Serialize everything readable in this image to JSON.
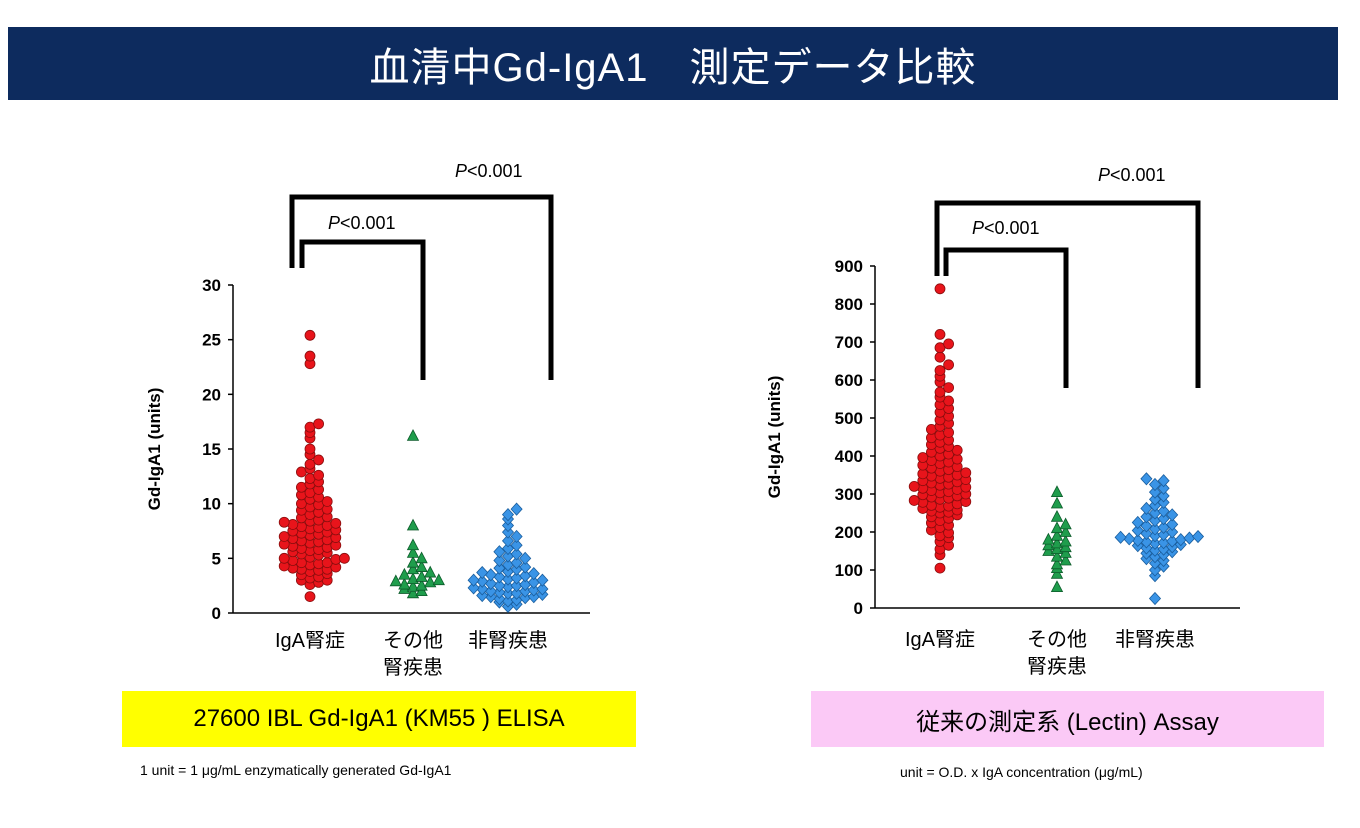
{
  "title": "血清中Gd-IgA1　測定データ比較",
  "colors": {
    "title_bg": "#0d2b5e",
    "title_text": "#ffffff",
    "elisa_box": "#ffff00",
    "lectin_box": "#fbc9f6",
    "iga_markers": "#e8141b",
    "other_markers": "#1f9d4c",
    "non_markers": "#3a94e6"
  },
  "chart_data": [
    {
      "type": "scatter",
      "style": "dot-plot (beeswarm)",
      "categories": [
        "IgA腎症",
        "その他\n腎疾患",
        "非腎疾患"
      ],
      "ylabel": "Gd-IgA1 (units)",
      "ylim": [
        0,
        30
      ],
      "yticks": [
        "0",
        "5",
        "10",
        "15",
        "20",
        "25",
        "30"
      ],
      "grid": false,
      "series": [
        {
          "category": "IgA腎症",
          "marker": "circle",
          "color": "#e8141b",
          "values": [
            1.5,
            2.6,
            2.8,
            3.0,
            3.0,
            3.2,
            3.3,
            3.5,
            3.6,
            3.8,
            3.9,
            4.0,
            4.0,
            4.1,
            4.2,
            4.3,
            4.4,
            4.5,
            4.6,
            4.6,
            4.8,
            4.9,
            5.0,
            5.0,
            5.1,
            5.3,
            5.4,
            5.5,
            5.6,
            5.7,
            5.8,
            5.9,
            6.0,
            6.1,
            6.2,
            6.3,
            6.4,
            6.5,
            6.6,
            6.7,
            6.8,
            6.9,
            7.0,
            7.1,
            7.2,
            7.3,
            7.4,
            7.5,
            7.6,
            7.7,
            7.8,
            7.9,
            8.0,
            8.1,
            8.2,
            8.3,
            8.4,
            8.5,
            8.7,
            8.8,
            9.0,
            9.2,
            9.4,
            9.5,
            9.7,
            9.9,
            10.0,
            10.2,
            10.4,
            10.6,
            10.8,
            11.0,
            11.3,
            11.5,
            11.8,
            12.0,
            12.3,
            12.6,
            12.9,
            13.2,
            13.6,
            14.0,
            14.5,
            15.0,
            16.0,
            16.5,
            17.0,
            17.3,
            22.8,
            23.5,
            25.4
          ]
        },
        {
          "category": "その他\n腎疾患",
          "marker": "triangle",
          "color": "#1f9d4c",
          "values": [
            1.8,
            2.0,
            2.2,
            2.4,
            2.5,
            2.6,
            2.8,
            2.9,
            3.0,
            3.1,
            3.3,
            3.5,
            3.7,
            4.0,
            4.2,
            4.6,
            5.0,
            5.5,
            6.2,
            8.0,
            16.2
          ]
        },
        {
          "category": "非腎疾患",
          "marker": "diamond",
          "color": "#3a94e6",
          "values": [
            0.6,
            0.8,
            1.0,
            1.1,
            1.2,
            1.3,
            1.4,
            1.5,
            1.5,
            1.6,
            1.7,
            1.8,
            1.8,
            1.9,
            2.0,
            2.0,
            2.1,
            2.2,
            2.2,
            2.3,
            2.4,
            2.5,
            2.5,
            2.6,
            2.7,
            2.8,
            2.9,
            3.0,
            3.0,
            3.1,
            3.2,
            3.3,
            3.4,
            3.5,
            3.6,
            3.7,
            3.8,
            4.0,
            4.1,
            4.2,
            4.4,
            4.6,
            4.8,
            5.0,
            5.2,
            5.4,
            5.6,
            5.9,
            6.2,
            6.6,
            7.0,
            7.4,
            8.0,
            8.6,
            9.0,
            9.5
          ]
        }
      ],
      "significance": [
        {
          "label_italic": "P",
          "label": "<0.001",
          "groups": [
            "IgA腎症",
            "その他\n腎疾患"
          ]
        },
        {
          "label_italic": "P",
          "label": "<0.001",
          "groups": [
            "IgA腎症",
            "非腎疾患"
          ]
        }
      ],
      "assay_label": "27600 IBL Gd-IgA1 (KM55 ) ELISA",
      "unit_note": "1 unit  = 1 μg/mL enzymatically generated Gd-IgA1"
    },
    {
      "type": "scatter",
      "style": "dot-plot (beeswarm)",
      "categories": [
        "IgA腎症",
        "その他\n腎疾患",
        "非腎疾患"
      ],
      "ylabel": "Gd-IgA1 (units)",
      "ylim": [
        0,
        900
      ],
      "yticks": [
        "0",
        "100",
        "200",
        "300",
        "400",
        "500",
        "600",
        "700",
        "800",
        "900"
      ],
      "grid": false,
      "series": [
        {
          "category": "IgA腎症",
          "marker": "circle",
          "color": "#e8141b",
          "values": [
            105,
            140,
            155,
            165,
            175,
            185,
            190,
            198,
            205,
            212,
            218,
            224,
            230,
            236,
            240,
            245,
            250,
            252,
            255,
            258,
            262,
            265,
            268,
            270,
            274,
            278,
            280,
            283,
            286,
            289,
            292,
            295,
            298,
            300,
            303,
            306,
            309,
            312,
            315,
            318,
            320,
            323,
            326,
            329,
            332,
            335,
            338,
            341,
            344,
            347,
            350,
            353,
            356,
            360,
            364,
            368,
            372,
            376,
            380,
            384,
            388,
            392,
            396,
            400,
            405,
            410,
            415,
            420,
            425,
            430,
            436,
            442,
            448,
            455,
            462,
            470,
            478,
            486,
            495,
            505,
            515,
            525,
            535,
            545,
            555,
            568,
            580,
            595,
            610,
            625,
            640,
            660,
            685,
            695,
            720,
            840
          ]
        },
        {
          "category": "その他\n腎疾患",
          "marker": "triangle",
          "color": "#1f9d4c",
          "values": [
            55,
            90,
            105,
            115,
            125,
            135,
            145,
            150,
            155,
            160,
            165,
            170,
            175,
            180,
            190,
            200,
            210,
            220,
            240,
            275,
            305
          ]
        },
        {
          "category": "非腎疾患",
          "marker": "diamond",
          "color": "#3a94e6",
          "values": [
            25,
            85,
            100,
            110,
            118,
            125,
            130,
            135,
            140,
            144,
            148,
            152,
            155,
            158,
            161,
            164,
            167,
            170,
            172,
            174,
            176,
            178,
            180,
            182,
            184,
            186,
            188,
            190,
            193,
            196,
            200,
            204,
            208,
            212,
            216,
            220,
            225,
            230,
            235,
            240,
            245,
            250,
            255,
            262,
            270,
            278,
            286,
            295,
            305,
            315,
            325,
            335,
            340
          ]
        }
      ],
      "significance": [
        {
          "label_italic": "P",
          "label": "<0.001",
          "groups": [
            "IgA腎症",
            "その他\n腎疾患"
          ]
        },
        {
          "label_italic": "P",
          "label": "<0.001",
          "groups": [
            "IgA腎症",
            "非腎疾患"
          ]
        }
      ],
      "assay_label": "従来の測定系 (Lectin) Assay",
      "unit_note": "unit  = O.D. x IgA concentration (μg/mL)"
    }
  ]
}
